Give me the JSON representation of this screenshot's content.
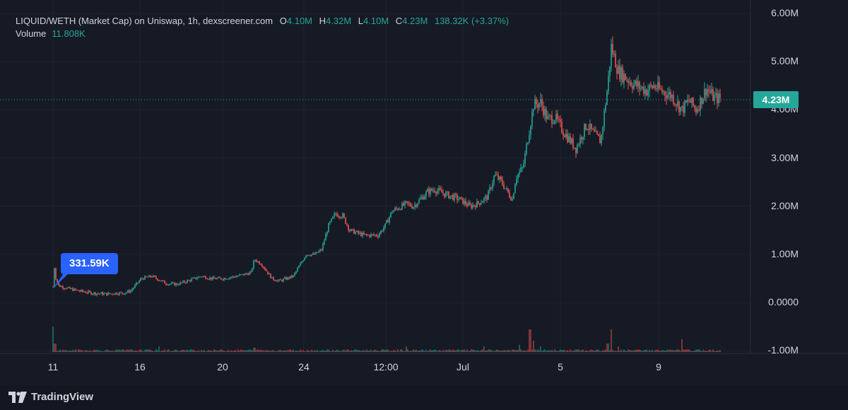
{
  "header": {
    "symbol": "LIQUID/WETH (Market Cap) on Uniswap, 1h, dexscreener.com",
    "open_label": "O",
    "open": "4.10M",
    "high_label": "H",
    "high": "4.32M",
    "low_label": "L",
    "low": "4.10M",
    "close_label": "C",
    "close": "4.23M",
    "change": "138.32K (+3.37%)",
    "volume_label": "Volume",
    "volume": "11.808K"
  },
  "last_price_tag": "4.23M",
  "callout": "331.59K",
  "footer": {
    "brand": "TradingView",
    "logo_icon": "tradingview-logo-icon"
  },
  "colors": {
    "up": "#26a69a",
    "down": "#ef5350",
    "callout": "#2962ff"
  },
  "chart_data": {
    "type": "candlestick",
    "y_ticks": [
      "6.00M",
      "5.00M",
      "4.00M",
      "3.00M",
      "2.00M",
      "1.00M",
      "0.0000",
      "-1.00M"
    ],
    "x_ticks": [
      "11",
      "16",
      "20",
      "24",
      "12:00",
      "Jul",
      "5",
      "9"
    ],
    "ylim": [
      -1000000,
      6000000
    ],
    "last_value": 4230000,
    "series_path": [
      [
        0,
        331590
      ],
      [
        1,
        900000
      ],
      [
        3,
        550000
      ],
      [
        8,
        350000
      ],
      [
        20,
        300000
      ],
      [
        35,
        250000
      ],
      [
        55,
        200000
      ],
      [
        75,
        180000
      ],
      [
        90,
        200000
      ],
      [
        100,
        200000
      ],
      [
        110,
        250000
      ],
      [
        125,
        500000
      ],
      [
        140,
        550000
      ],
      [
        160,
        400000
      ],
      [
        175,
        380000
      ],
      [
        190,
        450000
      ],
      [
        210,
        550000
      ],
      [
        225,
        500000
      ],
      [
        240,
        500000
      ],
      [
        260,
        550000
      ],
      [
        280,
        620000
      ],
      [
        285,
        900000
      ],
      [
        295,
        800000
      ],
      [
        310,
        500000
      ],
      [
        320,
        450000
      ],
      [
        340,
        550000
      ],
      [
        350,
        800000
      ],
      [
        358,
        1000000
      ],
      [
        370,
        1000000
      ],
      [
        380,
        1100000
      ],
      [
        390,
        1600000
      ],
      [
        400,
        1850000
      ],
      [
        410,
        1800000
      ],
      [
        420,
        1500000
      ],
      [
        440,
        1400000
      ],
      [
        460,
        1400000
      ],
      [
        470,
        1600000
      ],
      [
        480,
        1900000
      ],
      [
        500,
        2050000
      ],
      [
        510,
        2000000
      ],
      [
        520,
        2150000
      ],
      [
        530,
        2300000
      ],
      [
        540,
        2350000
      ],
      [
        555,
        2250000
      ],
      [
        565,
        2200000
      ],
      [
        575,
        2150000
      ],
      [
        590,
        2000000
      ],
      [
        600,
        2050000
      ],
      [
        615,
        2200000
      ],
      [
        625,
        2650000
      ],
      [
        635,
        2500000
      ],
      [
        645,
        2250000
      ],
      [
        650,
        2150000
      ],
      [
        655,
        2600000
      ],
      [
        665,
        2800000
      ],
      [
        680,
        4100000
      ],
      [
        690,
        4150000
      ],
      [
        700,
        3800000
      ],
      [
        710,
        3850000
      ],
      [
        720,
        3600000
      ],
      [
        730,
        3400000
      ],
      [
        740,
        3200000
      ],
      [
        755,
        3700000
      ],
      [
        765,
        3500000
      ],
      [
        775,
        3350000
      ],
      [
        785,
        4500000
      ],
      [
        790,
        5300000
      ],
      [
        800,
        4800000
      ],
      [
        820,
        4550000
      ],
      [
        840,
        4400000
      ],
      [
        850,
        4500000
      ],
      [
        860,
        4400000
      ],
      [
        875,
        4300000
      ],
      [
        890,
        4000000
      ],
      [
        900,
        4200000
      ],
      [
        910,
        4000000
      ],
      [
        925,
        4450000
      ],
      [
        935,
        4250000
      ],
      [
        945,
        4230000
      ]
    ],
    "volume_spikes": [
      [
        0,
        0.9
      ],
      [
        3,
        0.3
      ],
      [
        150,
        0.2
      ],
      [
        285,
        0.15
      ],
      [
        500,
        0.2
      ],
      [
        610,
        0.2
      ],
      [
        660,
        0.25
      ],
      [
        675,
        0.8
      ],
      [
        680,
        0.4
      ],
      [
        690,
        0.2
      ],
      [
        785,
        0.3
      ],
      [
        790,
        0.8
      ],
      [
        800,
        0.2
      ],
      [
        890,
        0.45
      ]
    ]
  }
}
